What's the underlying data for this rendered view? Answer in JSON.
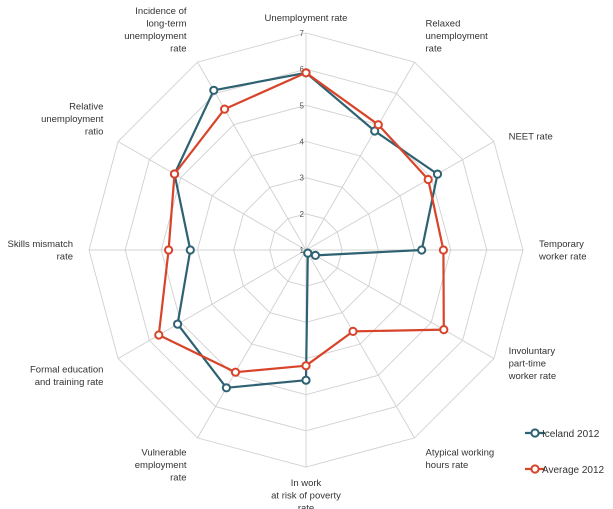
{
  "colors": {
    "iceland": "#2e6272",
    "average": "#d8442a",
    "grid": "#d0d0d0"
  },
  "chart_data": {
    "type": "radar",
    "axes": [
      [
        "Unemployment rate"
      ],
      [
        "Relaxed",
        "unemployment",
        "rate"
      ],
      [
        "NEET rate"
      ],
      [
        "Temporary",
        "worker rate"
      ],
      [
        "Involuntary",
        "part-time",
        "worker rate"
      ],
      [
        "Atypical working",
        "hours rate"
      ],
      [
        "In work",
        "at risk of poverty",
        "rate"
      ],
      [
        "Vulnerable",
        "employment",
        "rate"
      ],
      [
        "Formal education",
        "and training rate"
      ],
      [
        "Skills mismatch",
        "rate"
      ],
      [
        "Relative",
        "unemployment",
        "ratio"
      ],
      [
        "Incidence of",
        "long-term",
        "unemployment",
        "rate"
      ]
    ],
    "r_ticks": [
      1,
      2,
      3,
      4,
      5,
      6,
      7
    ],
    "r_range": [
      1,
      7
    ],
    "series": [
      {
        "name": "Iceland 2012",
        "color_key": "iceland",
        "values": [
          5.9,
          4.8,
          5.2,
          4.2,
          1.3,
          1.1,
          4.6,
          5.4,
          5.1,
          4.2,
          5.2,
          6.1
        ]
      },
      {
        "name": "Average 2012",
        "color_key": "average",
        "values": [
          5.9,
          5.0,
          4.9,
          4.8,
          5.4,
          3.6,
          4.2,
          4.9,
          5.7,
          4.8,
          5.2,
          5.5
        ]
      }
    ],
    "legend_position": "bottom-right"
  }
}
